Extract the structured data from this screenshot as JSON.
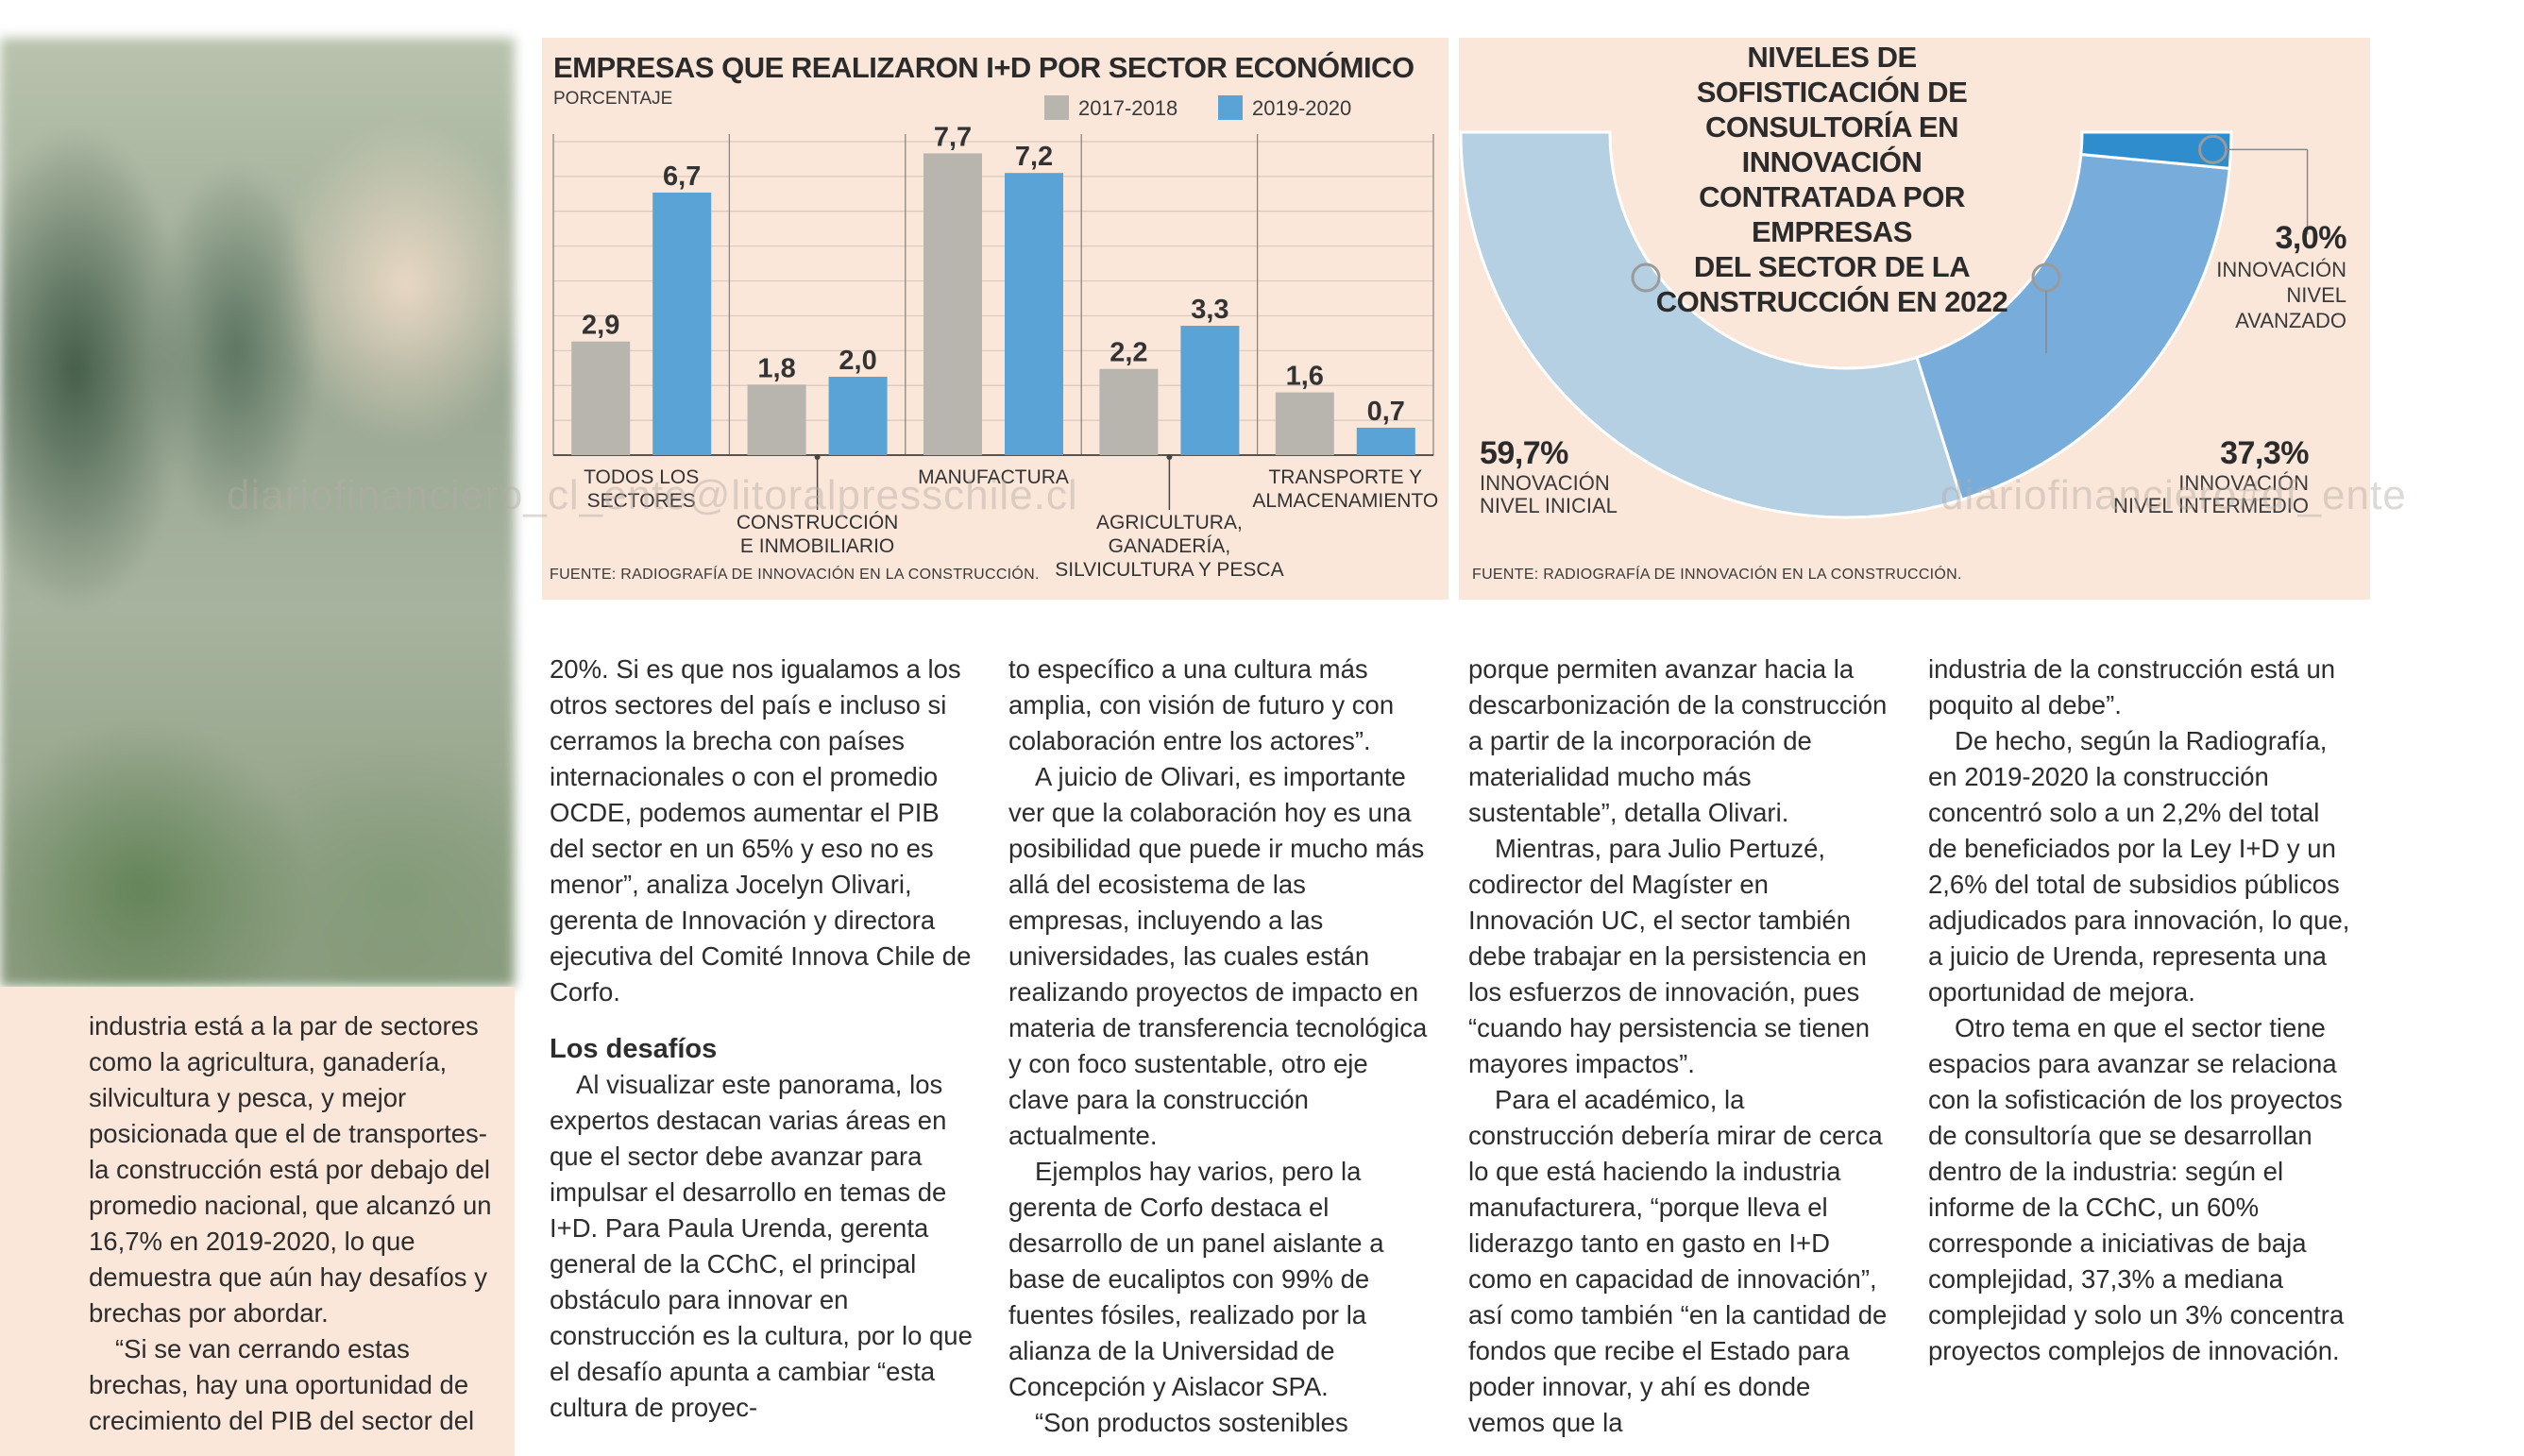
{
  "bar_chart": {
    "title": "EMPRESAS QUE REALIZARON I+D POR SECTOR ECONÓMICO",
    "subtitle": "PORCENTAJE",
    "legend": [
      {
        "label": "2017-2018",
        "color": "#b8b5ae"
      },
      {
        "label": "2019-2020",
        "color": "#5aa3d6"
      }
    ],
    "source": "FUENTE: RADIOGRAFÍA DE INNOVACIÓN EN LA CONSTRUCCIÓN."
  },
  "donut_chart": {
    "title_lines": [
      "NIVELES DE SOFISTICACIÓN DE",
      "CONSULTORÍA EN INNOVACIÓN",
      "CONTRATADA POR EMPRESAS",
      "DEL SECTOR DE LA",
      "CONSTRUCCIÓN EN 2022"
    ],
    "source": "FUENTE: RADIOGRAFÍA DE INNOVACIÓN EN LA CONSTRUCCIÓN.",
    "labels": {
      "inicial": {
        "value": "59,7%",
        "line1": "INNOVACIÓN",
        "line2": "NIVEL INICIAL"
      },
      "intermedio": {
        "value": "37,3%",
        "line1": "INNOVACIÓN",
        "line2": "NIVEL INTERMEDIO"
      },
      "avanzado": {
        "value": "3,0%",
        "line1": "INNOVACIÓN",
        "line2": "NIVEL",
        "line3": "AVANZADO"
      }
    }
  },
  "chart_data": [
    {
      "type": "bar",
      "title": "EMPRESAS QUE REALIZARON I+D POR SECTOR ECONÓMICO",
      "ylabel": "PORCENTAJE",
      "categories": [
        [
          "TODOS LOS",
          "SECTORES"
        ],
        [
          "CONSTRUCCIÓN",
          "E INMOBILIARIO"
        ],
        [
          "MANUFACTURA"
        ],
        [
          "AGRICULTURA,",
          "GANADERÍA,",
          "SILVICULTURA Y PESCA"
        ],
        [
          "TRANSPORTE Y",
          "ALMACENAMIENTO"
        ]
      ],
      "series": [
        {
          "name": "2017-2018",
          "values": [
            2.9,
            1.8,
            7.7,
            2.2,
            1.6
          ],
          "labels": [
            "2,9",
            "1,8",
            "7,7",
            "2,2",
            "1,6"
          ],
          "color": "#b8b5ae"
        },
        {
          "name": "2019-2020",
          "values": [
            6.7,
            2.0,
            7.2,
            3.3,
            0.7
          ],
          "labels": [
            "6,7",
            "2,0",
            "7,2",
            "3,3",
            "0,7"
          ],
          "color": "#5aa3d6"
        }
      ],
      "ylim": [
        0,
        8
      ],
      "grid": true
    },
    {
      "type": "pie",
      "variant": "semicircle-donut",
      "title": "NIVELES DE SOFISTICACIÓN DE CONSULTORÍA EN INNOVACIÓN CONTRATADA POR EMPRESAS DEL SECTOR DE LA CONSTRUCCIÓN EN 2022",
      "slices": [
        {
          "name": "INNOVACIÓN NIVEL INICIAL",
          "value": 59.7,
          "color": "#b5cfe3"
        },
        {
          "name": "INNOVACIÓN NIVEL INTERMEDIO",
          "value": 37.3,
          "color": "#78addb"
        },
        {
          "name": "INNOVACIÓN NIVEL AVANZADO",
          "value": 3.0,
          "color": "#2f8ccd"
        }
      ]
    }
  ],
  "watermarks": [
    "diariofinanciero_cl_ente@litoralpresschile.cl",
    "diariofinanciero#df_ente"
  ],
  "article": {
    "col1": [
      {
        "text": "industria está a la par de sectores como la agricultura, ganadería, silvicultura y pesca, y mejor posicionada que el de transportes- la construcción está por debajo del promedio nacional, que alcanzó un 16,7% en 2019-2020, lo que demuestra que aún hay desafíos y brechas por abordar.",
        "indent": false
      },
      {
        "text": "“Si se van cerrando estas brechas, hay una oportunidad de crecimiento del PIB del sector del",
        "indent": true
      }
    ],
    "col2": [
      {
        "text": "20%. Si es que nos igualamos a los otros sectores del país e incluso si cerramos la brecha con países internacionales o con el promedio OCDE, podemos aumentar el PIB del sector en un 65% y eso no es menor”, analiza Jocelyn Olivari, gerenta de Innovación y directora ejecutiva del Comité Innova Chile de Corfo.",
        "indent": false
      },
      {
        "text": "Los desafíos",
        "subhead": true
      },
      {
        "text": "Al visualizar este panorama, los expertos destacan varias áreas en que el sector debe avanzar para impulsar el desarrollo en temas de I+D. Para Paula Urenda, gerenta general de la CChC, el principal obstáculo para innovar en construcción es la cultura, por lo que el desafío apunta a cambiar “esta cultura de proyec-",
        "indent": true
      }
    ],
    "col3": [
      {
        "text": "to específico a una cultura más amplia, con visión de futuro y con colaboración entre los actores”.",
        "indent": false
      },
      {
        "text": "A juicio de Olivari, es importante ver que la colaboración hoy es una posibilidad que puede ir mucho más allá del ecosistema de las empresas, incluyendo a las universidades, las cuales están realizando proyectos de impacto en materia de transferencia tecnológica y con foco sustentable, otro eje clave para la construcción actualmente.",
        "indent": true
      },
      {
        "text": "Ejemplos hay varios, pero la gerenta de Corfo destaca el desarrollo de un panel aislante a base de eucaliptos con 99% de fuentes fósiles, realizado por la alianza de la Universidad de Concepción y Aislacor SPA.",
        "indent": true
      },
      {
        "text": "“Son productos sostenibles",
        "indent": true
      }
    ],
    "col4": [
      {
        "text": "porque permiten avanzar hacia la descarbonización de la construcción a partir de la incorporación de materialidad mucho más sustentable”, detalla Olivari.",
        "indent": false
      },
      {
        "text": "Mientras, para Julio Pertuzé, codirector del Magíster en Innovación UC, el sector también debe trabajar en la persistencia en los esfuerzos de innovación, pues “cuando hay persistencia se tienen mayores impactos”.",
        "indent": true
      },
      {
        "text": "Para el académico, la construcción debería mirar de cerca lo que está haciendo la industria manufacturera, “porque lleva el liderazgo tanto en gasto en I+D como en capacidad de innovación”, así como también “en la cantidad de fondos que recibe el Estado para poder innovar, y ahí es donde vemos que la",
        "indent": true
      }
    ],
    "col5": [
      {
        "text": "industria de la construcción está un poquito al debe”.",
        "indent": false
      },
      {
        "text": "De hecho, según la Radiografía, en 2019-2020 la construcción concentró solo a un 2,2% del total de beneficiados por la Ley I+D y un 2,6% del total de subsidios públicos adjudicados para innovación, lo que, a juicio de Urenda, representa una oportunidad de mejora.",
        "indent": true
      },
      {
        "text": "Otro tema en que el sector tiene espacios para avanzar se relaciona con la sofisticación de los proyectos de consultoría que se desarrollan dentro de la industria: según el informe de la CChC, un 60% corresponde a iniciativas de baja complejidad, 37,3% a mediana complejidad y solo un 3% concentra proyectos complejos de innovación.",
        "indent": true
      }
    ]
  }
}
